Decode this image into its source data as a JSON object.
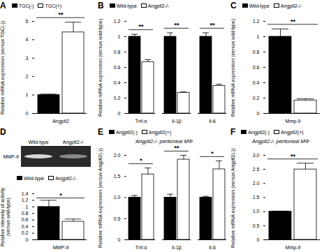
{
  "chart_data": [
    {
      "panel": "A",
      "type": "bar",
      "ylabel": "Relative mRNA expression (versus TGC(-))",
      "categories": [
        "Angptl2"
      ],
      "series": [
        {
          "name": "TGC(-)",
          "color": "#000000",
          "values": [
            1.0
          ],
          "errors": [
            0.05
          ]
        },
        {
          "name": "TGC(+)",
          "color": "#ffffff",
          "values": [
            4.4
          ],
          "errors": [
            0.55
          ]
        }
      ],
      "significance": [
        "**"
      ],
      "ylim": [
        0,
        5
      ],
      "yticks": [
        0,
        1,
        2,
        3,
        4,
        5
      ]
    },
    {
      "panel": "B",
      "type": "bar",
      "ylabel": "Relative mRNA expression (versus wild-type)",
      "categories": [
        "Tnf-α",
        "Il-1β",
        "Il-6"
      ],
      "series": [
        {
          "name": "Wild-type",
          "color": "#000000",
          "values": [
            1.0,
            1.0,
            1.0
          ],
          "errors": [
            0.03,
            0.05,
            0.05
          ]
        },
        {
          "name": "Angptl2-/-",
          "color": "#ffffff",
          "values": [
            0.67,
            0.27,
            0.36
          ],
          "errors": [
            0.03,
            0.01,
            0.02
          ]
        }
      ],
      "significance": [
        "**",
        "**",
        "**"
      ],
      "ylim": [
        0,
        1.2
      ],
      "yticks": [
        0,
        0.2,
        0.4,
        0.6,
        0.8,
        1,
        1.2
      ]
    },
    {
      "panel": "C",
      "type": "bar",
      "ylabel": "Relative mRNA expression (versus wild-type)",
      "categories": [
        "Mmp-9"
      ],
      "series": [
        {
          "name": "Wild-type",
          "color": "#000000",
          "values": [
            1.0
          ],
          "errors": [
            0.1
          ]
        },
        {
          "name": "Angptl2-/-",
          "color": "#ffffff",
          "values": [
            0.17
          ],
          "errors": [
            0.02
          ]
        }
      ],
      "significance": [
        "**"
      ],
      "ylim": [
        0,
        1.2
      ],
      "yticks": [
        0,
        0.2,
        0.4,
        0.6,
        0.8,
        1,
        1.2
      ]
    },
    {
      "panel": "D",
      "type": "bar",
      "gel": {
        "lanes": [
          "Wild-type",
          "Angptl2-/-"
        ],
        "band": "MMP-9"
      },
      "ylabel": "Relative intensity of activity (versus wild-type)",
      "categories": [
        "MMP-9"
      ],
      "series": [
        {
          "name": "Wild-type",
          "color": "#000000",
          "values": [
            1.0
          ],
          "errors": [
            0.2
          ]
        },
        {
          "name": "Angptl2-/-",
          "color": "#ffffff",
          "values": [
            0.55
          ],
          "errors": [
            0.08
          ]
        }
      ],
      "significance": [
        "*"
      ],
      "ylim": [
        0,
        1.4
      ],
      "yticks": [
        0,
        0.2,
        0.4,
        0.6,
        0.8,
        1,
        1.2,
        1.4
      ]
    },
    {
      "panel": "E",
      "type": "bar",
      "title": "Angptl2-/- peritoneal MΦ",
      "ylabel": "Relative mRNA expression (versus Angptl2(-))",
      "categories": [
        "Tnf-α",
        "Il-1β",
        "Il-6"
      ],
      "series": [
        {
          "name": "Angptl2(-)",
          "color": "#000000",
          "values": [
            1.0,
            1.0,
            1.0
          ],
          "errors": [
            0.05,
            0.08,
            0.03
          ]
        },
        {
          "name": "Angptl2(+)",
          "color": "#ffffff",
          "values": [
            1.55,
            1.9,
            1.67
          ],
          "errors": [
            0.15,
            0.1,
            0.2
          ]
        }
      ],
      "significance": [
        "*",
        "**",
        "*"
      ],
      "ylim": [
        0,
        2
      ],
      "yticks": [
        0,
        0.5,
        {
          "value": 1,
          "label": "1.0"
        },
        1.5,
        {
          "value": 2,
          "label": "2.0"
        }
      ]
    },
    {
      "panel": "F",
      "type": "bar",
      "title": "Angptl2-/- peritoneal MΦ",
      "ylabel": "Relative mRNA expression (versus Angptl2(-))",
      "categories": [
        "Mmp-9"
      ],
      "series": [
        {
          "name": "Angptl2(-)",
          "color": "#000000",
          "values": [
            1.0
          ],
          "errors": [
            0.02
          ]
        },
        {
          "name": "Angptl2(+)",
          "color": "#ffffff",
          "values": [
            2.5
          ],
          "errors": [
            0.22
          ]
        }
      ],
      "significance": [
        "**"
      ],
      "ylim": [
        0,
        3
      ],
      "yticks": [
        0,
        0.5,
        {
          "value": 1,
          "label": "1.0"
        },
        1.5,
        {
          "value": 2,
          "label": "2.0"
        },
        2.5,
        {
          "value": 3,
          "label": "3.0"
        }
      ]
    }
  ]
}
